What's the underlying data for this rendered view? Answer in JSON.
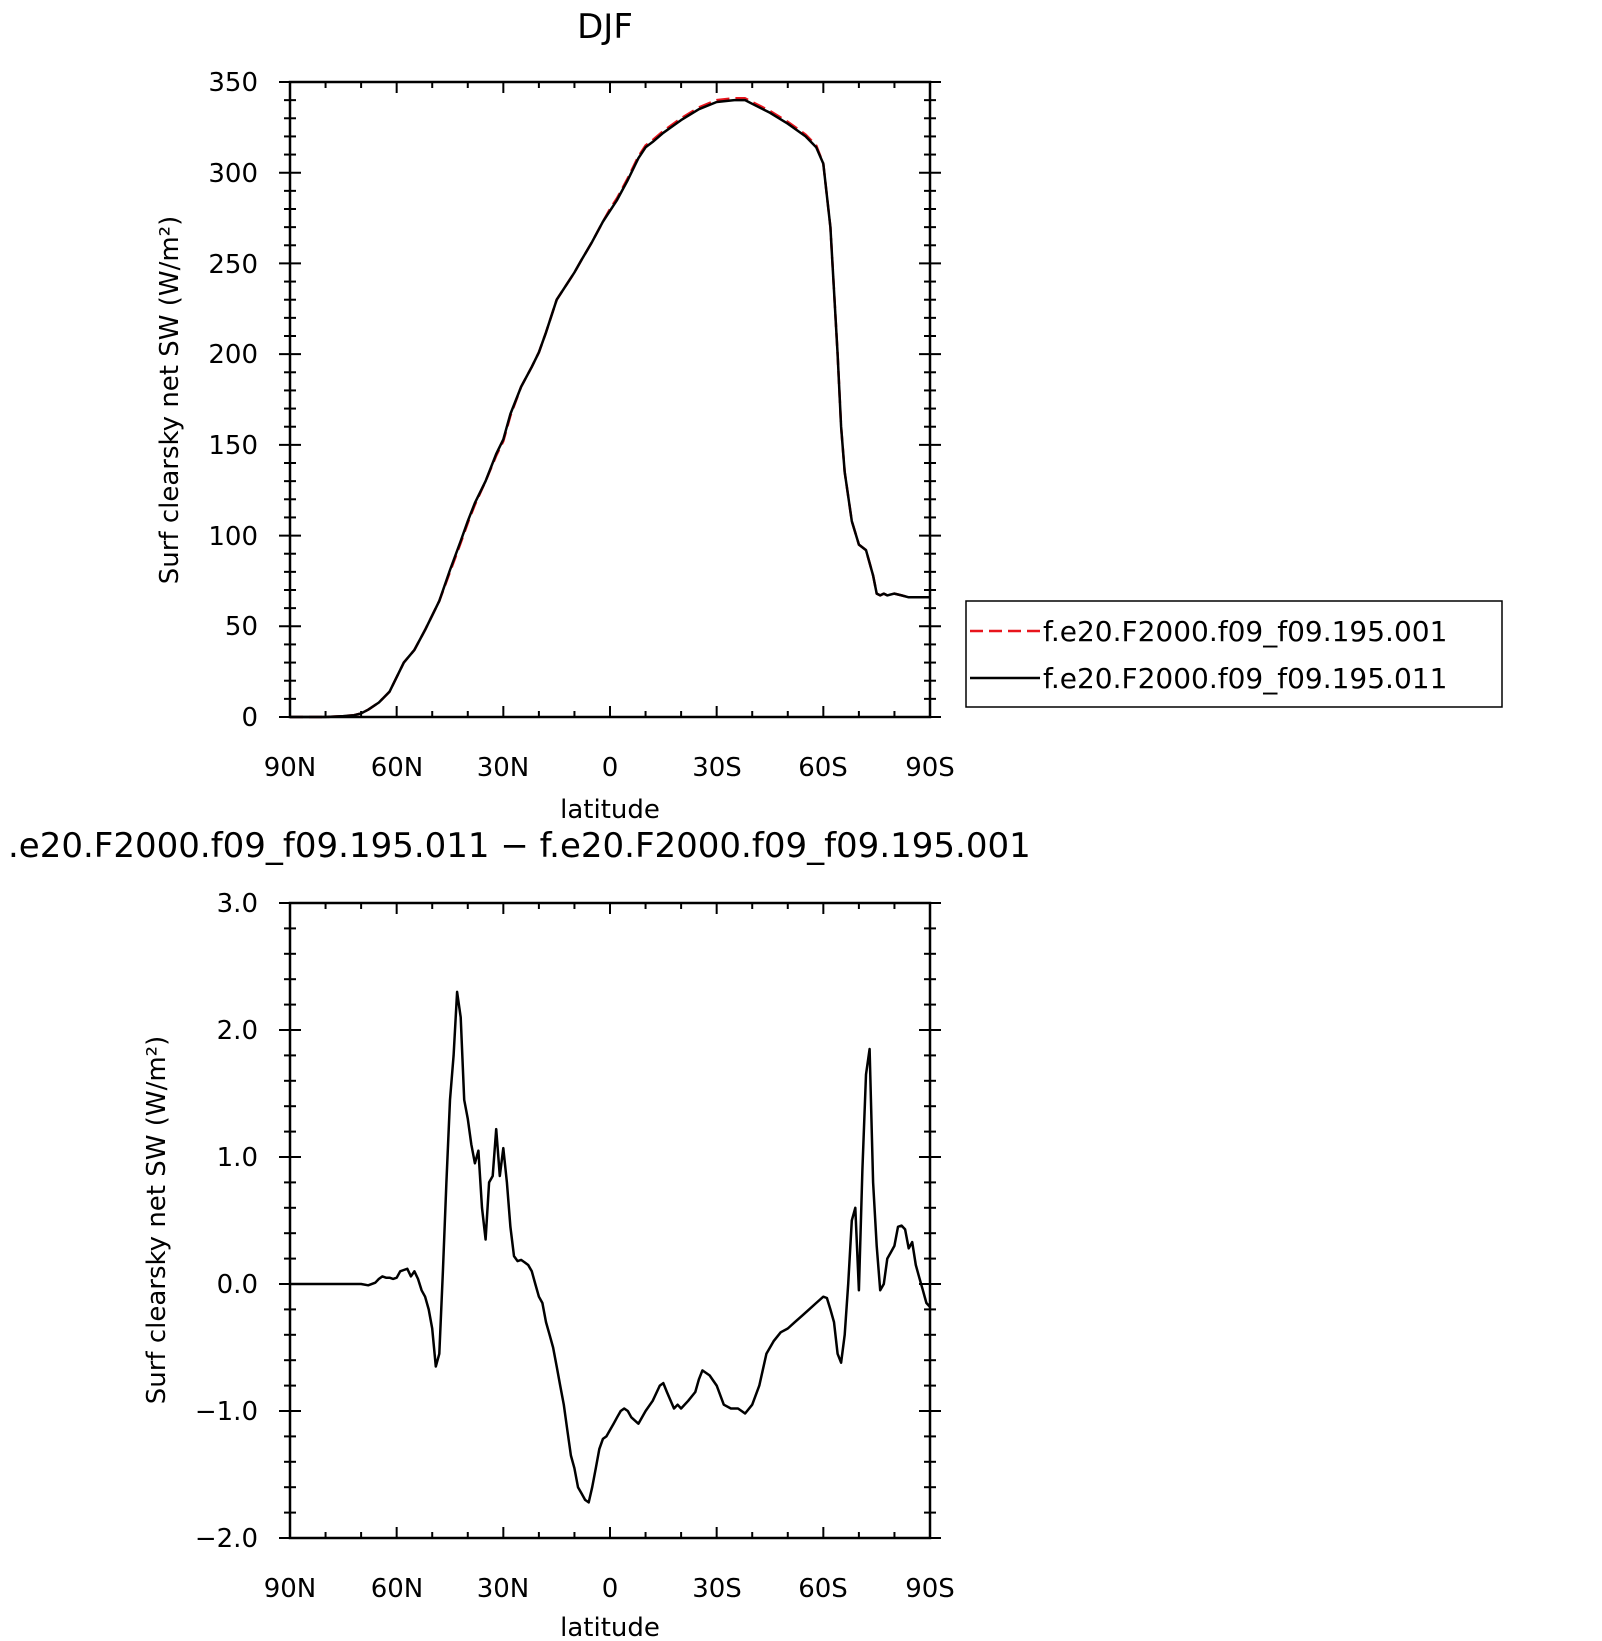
{
  "colors": {
    "case1": "#e8141c",
    "case2": "#000000",
    "axes": "#000000",
    "background": "#ffffff"
  },
  "chart_data": [
    {
      "type": "line",
      "title": "DJF",
      "xlabel": "latitude",
      "ylabel": "Surf clearsky net SW (W/m²)",
      "x_direction": "north-to-south",
      "xlim": [
        90,
        -90
      ],
      "ylim": [
        0,
        350
      ],
      "x_ticks": [
        90,
        60,
        30,
        0,
        -30,
        -60,
        -90
      ],
      "x_tick_labels": [
        "90N",
        "60N",
        "30N",
        "0",
        "30S",
        "60S",
        "90S"
      ],
      "y_ticks": [
        0,
        50,
        100,
        150,
        200,
        250,
        300,
        350
      ],
      "y_tick_labels": [
        "0",
        "50",
        "100",
        "150",
        "200",
        "250",
        "300",
        "350"
      ],
      "legend_position": "right",
      "legend": [
        {
          "label": "f.e20.F2000.f09_f09.195.001",
          "color": "#e8141c",
          "style": "dashed"
        },
        {
          "label": "f.e20.F2000.f09_f09.195.011",
          "color": "#000000",
          "style": "solid"
        }
      ],
      "series": [
        {
          "name": "f.e20.F2000.f09_f09.195.001",
          "color": "#e8141c",
          "dash": "dashed",
          "x": [
            90,
            85,
            80,
            75,
            72,
            70,
            68,
            65,
            62,
            60,
            58,
            55,
            52,
            50,
            48,
            45,
            42,
            40,
            38,
            35,
            32,
            30,
            28,
            25,
            22,
            20,
            18,
            15,
            12,
            10,
            8,
            5,
            2,
            0,
            -2,
            -5,
            -8,
            -10,
            -12,
            -15,
            -20,
            -25,
            -30,
            -35,
            -38,
            -40,
            -45,
            -50,
            -55,
            -58,
            -60,
            -62,
            -63,
            -64,
            -65,
            -66,
            -68,
            -70,
            -72,
            -74,
            -75,
            -76,
            -77,
            -78,
            -80,
            -82,
            -84,
            -85,
            -86,
            -87,
            -88,
            -90
          ],
          "y": [
            0,
            0,
            0,
            0.5,
            1,
            2,
            4,
            8,
            14,
            22,
            30,
            37,
            48,
            56,
            64,
            80,
            96,
            107,
            117,
            130,
            144,
            152,
            166,
            182,
            193,
            201,
            212,
            230,
            239,
            245,
            252,
            262,
            273,
            280,
            286,
            297,
            309,
            315,
            318,
            323,
            330,
            336,
            340,
            341,
            341,
            339,
            334,
            328,
            321,
            315,
            305,
            270,
            235,
            200,
            160,
            135,
            108,
            95,
            92,
            78,
            68,
            67,
            68,
            67,
            68,
            67,
            66,
            66,
            66,
            66,
            66,
            66
          ]
        },
        {
          "name": "f.e20.F2000.f09_f09.195.011",
          "color": "#000000",
          "dash": "solid",
          "x": [
            90,
            85,
            80,
            75,
            72,
            70,
            68,
            65,
            62,
            60,
            58,
            55,
            52,
            50,
            48,
            45,
            42,
            40,
            38,
            35,
            32,
            30,
            28,
            25,
            22,
            20,
            18,
            15,
            12,
            10,
            8,
            5,
            2,
            0,
            -2,
            -5,
            -8,
            -10,
            -12,
            -15,
            -20,
            -25,
            -30,
            -35,
            -38,
            -40,
            -45,
            -50,
            -55,
            -58,
            -60,
            -62,
            -63,
            -64,
            -65,
            -66,
            -68,
            -70,
            -72,
            -74,
            -75,
            -76,
            -77,
            -78,
            -80,
            -82,
            -84,
            -85,
            -86,
            -87,
            -88,
            -90
          ],
          "y": [
            0,
            0,
            0,
            0.5,
            1,
            2,
            4,
            8,
            14,
            22,
            30,
            37,
            48,
            56,
            64,
            81,
            97,
            108,
            118,
            130,
            145,
            153,
            167,
            182,
            193,
            201,
            212,
            230,
            239,
            245,
            252,
            262,
            273,
            279,
            285,
            296,
            308,
            314,
            317,
            322,
            329,
            335,
            339,
            340,
            340,
            338,
            333,
            327,
            320,
            314,
            305,
            270,
            235,
            200,
            160,
            135,
            108,
            95,
            92,
            78,
            68,
            67,
            68,
            67,
            68,
            67,
            66,
            66,
            66,
            66,
            66,
            66
          ]
        }
      ]
    },
    {
      "type": "line",
      "title": ".e20.F2000.f09_f09.195.011 − f.e20.F2000.f09_f09.195.001",
      "xlabel": "latitude",
      "ylabel": "Surf clearsky net SW (W/m²)",
      "x_direction": "north-to-south",
      "xlim": [
        90,
        -90
      ],
      "ylim": [
        -2.0,
        3.0
      ],
      "x_ticks": [
        90,
        60,
        30,
        0,
        -30,
        -60,
        -90
      ],
      "x_tick_labels": [
        "90N",
        "60N",
        "30N",
        "0",
        "30S",
        "60S",
        "90S"
      ],
      "y_ticks": [
        -2.0,
        -1.0,
        0.0,
        1.0,
        2.0,
        3.0
      ],
      "y_tick_labels": [
        "−2.0",
        "−1.0",
        "0.0",
        "1.0",
        "2.0",
        "3.0"
      ],
      "series": [
        {
          "color": "#000000",
          "dash": "solid",
          "x": [
            90,
            70,
            68,
            66,
            65,
            64,
            63,
            62,
            61,
            60,
            59,
            58,
            57,
            56,
            55,
            54,
            53,
            52,
            51,
            50,
            49,
            48,
            47,
            46,
            45,
            44,
            43,
            42,
            41,
            40,
            39,
            38,
            37,
            36,
            35,
            34,
            33,
            32,
            31,
            30,
            29,
            28,
            27,
            26,
            25,
            24,
            23,
            22,
            21,
            20,
            19,
            18,
            17,
            16,
            15,
            14,
            13,
            12,
            11,
            10,
            9,
            8,
            7,
            6,
            5,
            4,
            3,
            2,
            1,
            0,
            -1,
            -2,
            -3,
            -4,
            -5,
            -6,
            -8,
            -10,
            -12,
            -14,
            -15,
            -16,
            -18,
            -19,
            -20,
            -22,
            -24,
            -25,
            -26,
            -28,
            -30,
            -32,
            -34,
            -36,
            -37,
            -38,
            -40,
            -42,
            -44,
            -46,
            -48,
            -50,
            -52,
            -54,
            -56,
            -58,
            -60,
            -61,
            -62,
            -63,
            -64,
            -65,
            -66,
            -67,
            -68,
            -69,
            -70,
            -71,
            -72,
            -73,
            -74,
            -75,
            -76,
            -77,
            -78,
            -79,
            -80,
            -81,
            -82,
            -83,
            -84,
            -85,
            -86,
            -87,
            -88,
            -89,
            -90
          ],
          "y": [
            0.0,
            0.0,
            -0.01,
            0.01,
            0.04,
            0.06,
            0.05,
            0.05,
            0.04,
            0.05,
            0.1,
            0.11,
            0.12,
            0.06,
            0.1,
            0.04,
            -0.05,
            -0.1,
            -0.2,
            -0.35,
            -0.65,
            -0.55,
            0.1,
            0.8,
            1.45,
            1.8,
            2.3,
            2.1,
            1.45,
            1.3,
            1.1,
            0.95,
            1.05,
            0.6,
            0.35,
            0.8,
            0.85,
            1.22,
            0.85,
            1.07,
            0.8,
            0.45,
            0.22,
            0.18,
            0.19,
            0.17,
            0.15,
            0.1,
            0.0,
            -0.1,
            -0.15,
            -0.3,
            -0.4,
            -0.5,
            -0.65,
            -0.8,
            -0.95,
            -1.15,
            -1.35,
            -1.45,
            -1.6,
            -1.65,
            -1.7,
            -1.72,
            -1.6,
            -1.45,
            -1.3,
            -1.22,
            -1.2,
            -1.15,
            -1.1,
            -1.05,
            -1.0,
            -0.98,
            -1.0,
            -1.05,
            -1.1,
            -1.0,
            -0.92,
            -0.8,
            -0.78,
            -0.85,
            -0.98,
            -0.95,
            -0.98,
            -0.92,
            -0.85,
            -0.75,
            -0.68,
            -0.72,
            -0.8,
            -0.95,
            -0.98,
            -0.98,
            -1.0,
            -1.02,
            -0.95,
            -0.8,
            -0.55,
            -0.45,
            -0.38,
            -0.35,
            -0.3,
            -0.25,
            -0.2,
            -0.15,
            -0.1,
            -0.11,
            -0.2,
            -0.3,
            -0.55,
            -0.62,
            -0.4,
            0.0,
            0.5,
            0.6,
            -0.05,
            0.9,
            1.65,
            1.85,
            0.8,
            0.3,
            -0.05,
            0.0,
            0.2,
            0.25,
            0.3,
            0.45,
            0.46,
            0.43,
            0.28,
            0.33,
            0.15,
            0.05,
            -0.05,
            -0.15,
            -0.18
          ]
        }
      ]
    }
  ]
}
